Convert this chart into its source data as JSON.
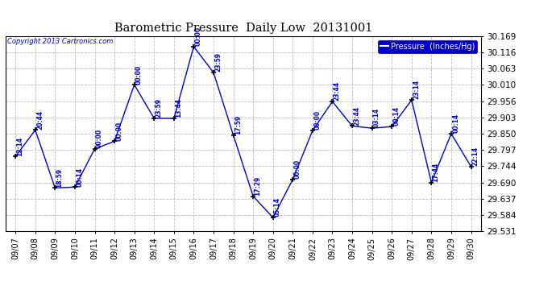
{
  "title": "Barometric Pressure  Daily Low  20131001",
  "copyright": "Copyright 2013 Cartronics.com",
  "legend_label": "Pressure  (Inches/Hg)",
  "x_labels": [
    "09/07",
    "09/08",
    "09/09",
    "09/10",
    "09/11",
    "09/12",
    "09/13",
    "09/14",
    "09/15",
    "09/16",
    "09/17",
    "09/18",
    "09/19",
    "09/20",
    "09/21",
    "09/22",
    "09/23",
    "09/24",
    "09/25",
    "09/26",
    "09/27",
    "09/28",
    "09/29",
    "09/30"
  ],
  "point_times": [
    "12:14",
    "20:44",
    "18:59",
    "00:14",
    "00:00",
    "00:00",
    "00:00",
    "23:59",
    "13:44",
    "00:00",
    "23:59",
    "17:59",
    "17:29",
    "05:14",
    "00:00",
    "00:00",
    "23:44",
    "23:44",
    "03:14",
    "00:14",
    "23:14",
    "17:44",
    "00:14",
    "22:14"
  ],
  "y_values": [
    29.775,
    29.862,
    29.672,
    29.675,
    29.8,
    29.825,
    30.01,
    29.9,
    29.9,
    30.135,
    30.05,
    29.845,
    29.645,
    29.575,
    29.7,
    29.86,
    29.955,
    29.875,
    29.868,
    29.873,
    29.96,
    29.69,
    29.85,
    29.742
  ],
  "ylim_min": 29.531,
  "ylim_max": 30.169,
  "yticks": [
    29.531,
    29.584,
    29.637,
    29.69,
    29.744,
    29.797,
    29.85,
    29.903,
    29.956,
    30.01,
    30.063,
    30.116,
    30.169
  ],
  "line_color": "#0000cc",
  "marker_color": "#000000",
  "bg_color": "#ffffff",
  "plot_bg_color": "#ffffff",
  "grid_color": "#bbbbbb",
  "title_color": "#000000",
  "label_color": "#0000cc",
  "copyright_color": "#0000cc",
  "legend_bg": "#0000cc",
  "legend_text_color": "#ffffff",
  "border_color": "#000000"
}
